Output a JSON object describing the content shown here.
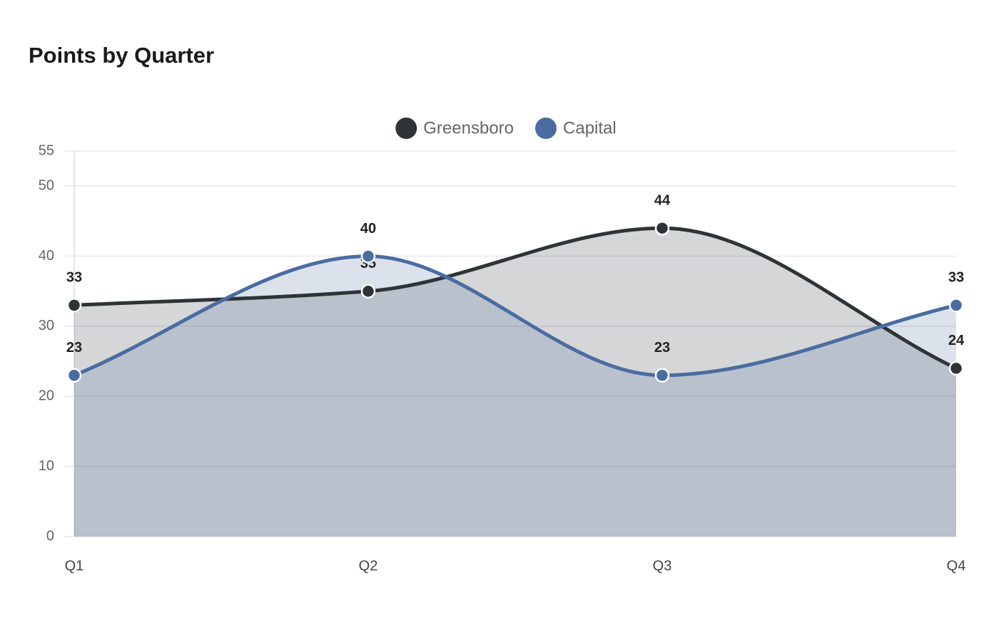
{
  "chart_data": {
    "type": "area",
    "title": "Points by Quarter",
    "categories": [
      "Q1",
      "Q2",
      "Q3",
      "Q4"
    ],
    "series": [
      {
        "name": "Greensboro",
        "color": "#2e3436",
        "values": [
          33,
          35,
          44,
          24
        ]
      },
      {
        "name": "Capital",
        "color": "#4a6ca1",
        "values": [
          23,
          40,
          23,
          33
        ]
      }
    ],
    "ylim": [
      0,
      55
    ],
    "yticks": [
      0,
      10,
      20,
      30,
      40,
      50,
      55
    ],
    "grid": true
  }
}
